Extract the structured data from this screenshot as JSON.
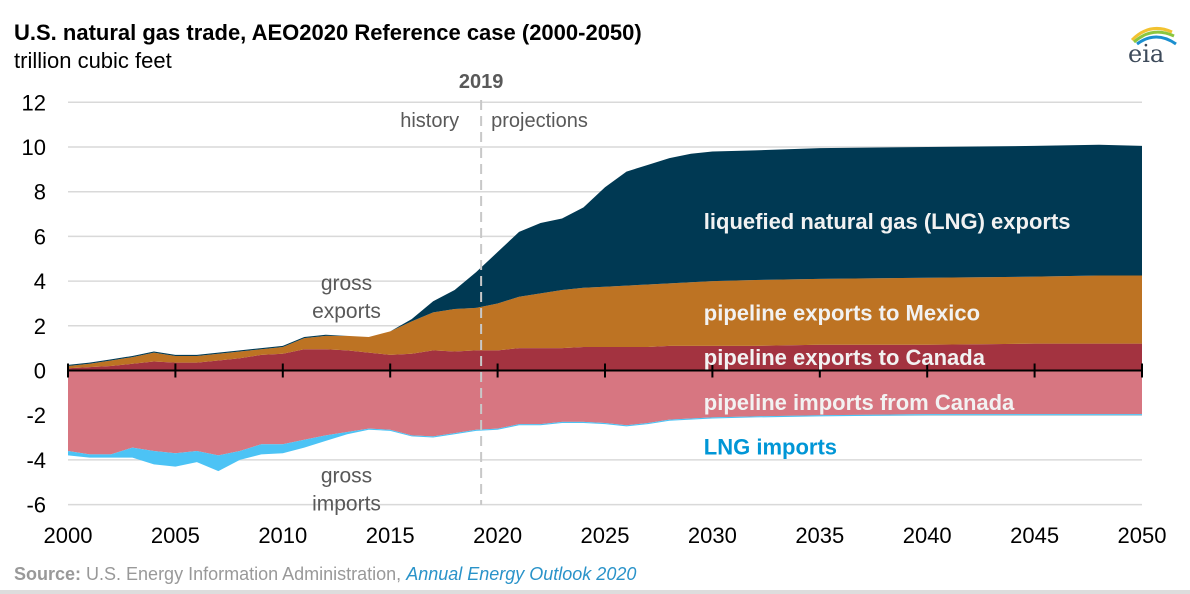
{
  "header": {
    "title": "U.S. natural gas trade, AEO2020 Reference case (2000-2050)",
    "subtitle": "trillion cubic feet",
    "logo_text": "eia"
  },
  "source": {
    "label": "Source:",
    "text": " U.S. Energy Information Administration, ",
    "link": "Annual Energy Outlook 2020"
  },
  "colors": {
    "lng_exports": "#003953",
    "mexico_exports": "#bd7323",
    "canada_exports": "#a33340",
    "canada_imports": "#d77681",
    "lng_imports": "#4cc3f5",
    "lng_imports_label": "#0096d6",
    "gridline": "#d9d9d9",
    "annotation": "#595959"
  },
  "chart_data": {
    "type": "area",
    "title": "U.S. natural gas trade, AEO2020 Reference case (2000-2050)",
    "ylabel": "trillion cubic feet",
    "xlim": [
      2000,
      2050
    ],
    "ylim": [
      -6,
      12
    ],
    "grid": true,
    "x_ticks": [
      2000,
      2005,
      2010,
      2015,
      2020,
      2025,
      2030,
      2035,
      2040,
      2045,
      2050
    ],
    "x_tick_labels": [
      "2000",
      "2005",
      "2010",
      "2015",
      "2020",
      "2025",
      "2030",
      "2035",
      "2040",
      "2045",
      "2050"
    ],
    "y_ticks": [
      12,
      10,
      8,
      6,
      4,
      2,
      0,
      -2,
      -4,
      -6
    ],
    "y_tick_labels": [
      "12",
      "10",
      "8",
      "6",
      "4",
      "2",
      "0",
      "-2",
      "-4",
      "-6"
    ],
    "divider": {
      "year": 2019,
      "label": "2019",
      "left_label": "history",
      "right_label": "projections"
    },
    "annotations": [
      {
        "text_lines": [
          "gross",
          "exports"
        ],
        "year": 2012.5,
        "value": 3.6
      },
      {
        "text_lines": [
          "gross",
          "imports"
        ],
        "year": 2012.5,
        "value": -5.0
      }
    ],
    "x": [
      2000,
      2001,
      2002,
      2003,
      2004,
      2005,
      2006,
      2007,
      2008,
      2009,
      2010,
      2011,
      2012,
      2013,
      2014,
      2015,
      2016,
      2017,
      2018,
      2019,
      2020,
      2021,
      2022,
      2023,
      2024,
      2025,
      2026,
      2027,
      2028,
      2029,
      2030,
      2032,
      2035,
      2040,
      2045,
      2048,
      2050
    ],
    "series": [
      {
        "name": "pipeline exports to Canada",
        "label": "pipeline exports to Canada",
        "stack": "exports",
        "cumulative_top": [
          0.1,
          0.15,
          0.2,
          0.3,
          0.4,
          0.35,
          0.35,
          0.45,
          0.55,
          0.7,
          0.75,
          0.95,
          0.95,
          0.9,
          0.8,
          0.7,
          0.75,
          0.9,
          0.85,
          0.9,
          0.9,
          1.0,
          1.0,
          1.0,
          1.05,
          1.05,
          1.05,
          1.05,
          1.1,
          1.1,
          1.1,
          1.1,
          1.15,
          1.15,
          1.2,
          1.2,
          1.2
        ]
      },
      {
        "name": "pipeline exports to Mexico",
        "label": "pipeline exports to Mexico",
        "stack": "exports",
        "cumulative_top": [
          0.2,
          0.3,
          0.45,
          0.6,
          0.8,
          0.65,
          0.65,
          0.75,
          0.85,
          0.95,
          1.05,
          1.45,
          1.55,
          1.55,
          1.5,
          1.75,
          2.2,
          2.6,
          2.75,
          2.8,
          3.0,
          3.3,
          3.45,
          3.6,
          3.7,
          3.75,
          3.8,
          3.85,
          3.9,
          3.95,
          4.0,
          4.05,
          4.1,
          4.15,
          4.2,
          4.25,
          4.25
        ]
      },
      {
        "name": "liquefied natural gas (LNG) exports",
        "label": "liquefied natural gas (LNG) exports",
        "stack": "exports",
        "cumulative_top": [
          0.25,
          0.35,
          0.5,
          0.65,
          0.85,
          0.7,
          0.7,
          0.8,
          0.9,
          1.0,
          1.1,
          1.5,
          1.6,
          1.55,
          1.5,
          1.75,
          2.3,
          3.1,
          3.6,
          4.4,
          5.3,
          6.2,
          6.6,
          6.8,
          7.3,
          8.2,
          8.9,
          9.2,
          9.5,
          9.7,
          9.8,
          9.85,
          9.95,
          10.0,
          10.05,
          10.1,
          10.05
        ]
      },
      {
        "name": "pipeline imports from Canada",
        "label": "pipeline imports from Canada",
        "stack": "imports",
        "cumulative_bottom": [
          -3.6,
          -3.75,
          -3.75,
          -3.45,
          -3.6,
          -3.7,
          -3.6,
          -3.8,
          -3.6,
          -3.3,
          -3.3,
          -3.1,
          -2.9,
          -2.75,
          -2.6,
          -2.65,
          -2.9,
          -2.95,
          -2.8,
          -2.65,
          -2.6,
          -2.4,
          -2.4,
          -2.3,
          -2.3,
          -2.35,
          -2.45,
          -2.35,
          -2.2,
          -2.15,
          -2.1,
          -2.05,
          -2.0,
          -1.95,
          -1.95,
          -1.95,
          -1.95
        ]
      },
      {
        "name": "LNG imports",
        "label": "LNG imports",
        "stack": "imports",
        "cumulative_bottom": [
          -3.8,
          -3.9,
          -3.9,
          -3.9,
          -4.2,
          -4.3,
          -4.1,
          -4.5,
          -4.0,
          -3.75,
          -3.7,
          -3.45,
          -3.15,
          -2.85,
          -2.65,
          -2.7,
          -2.95,
          -3.0,
          -2.85,
          -2.7,
          -2.65,
          -2.45,
          -2.45,
          -2.35,
          -2.35,
          -2.4,
          -2.5,
          -2.4,
          -2.25,
          -2.2,
          -2.15,
          -2.1,
          -2.05,
          -2.0,
          -2.0,
          -2.0,
          -2.0
        ]
      }
    ],
    "series_labels": [
      {
        "series": "liquefied natural gas (LNG) exports",
        "year": 2029.6,
        "value": 6.7,
        "color": "#f2f2f2"
      },
      {
        "series": "pipeline exports to Mexico",
        "year": 2029.6,
        "value": 2.6,
        "color": "#f2f2f2"
      },
      {
        "series": "pipeline exports to Canada",
        "year": 2029.6,
        "value": 0.6,
        "color": "#f2f2f2"
      },
      {
        "series": "pipeline imports from Canada",
        "year": 2029.6,
        "value": -1.4,
        "color": "#f2f2f2"
      },
      {
        "series": "LNG imports",
        "year": 2029.6,
        "value": -3.4,
        "color": "#0096d6"
      }
    ]
  }
}
